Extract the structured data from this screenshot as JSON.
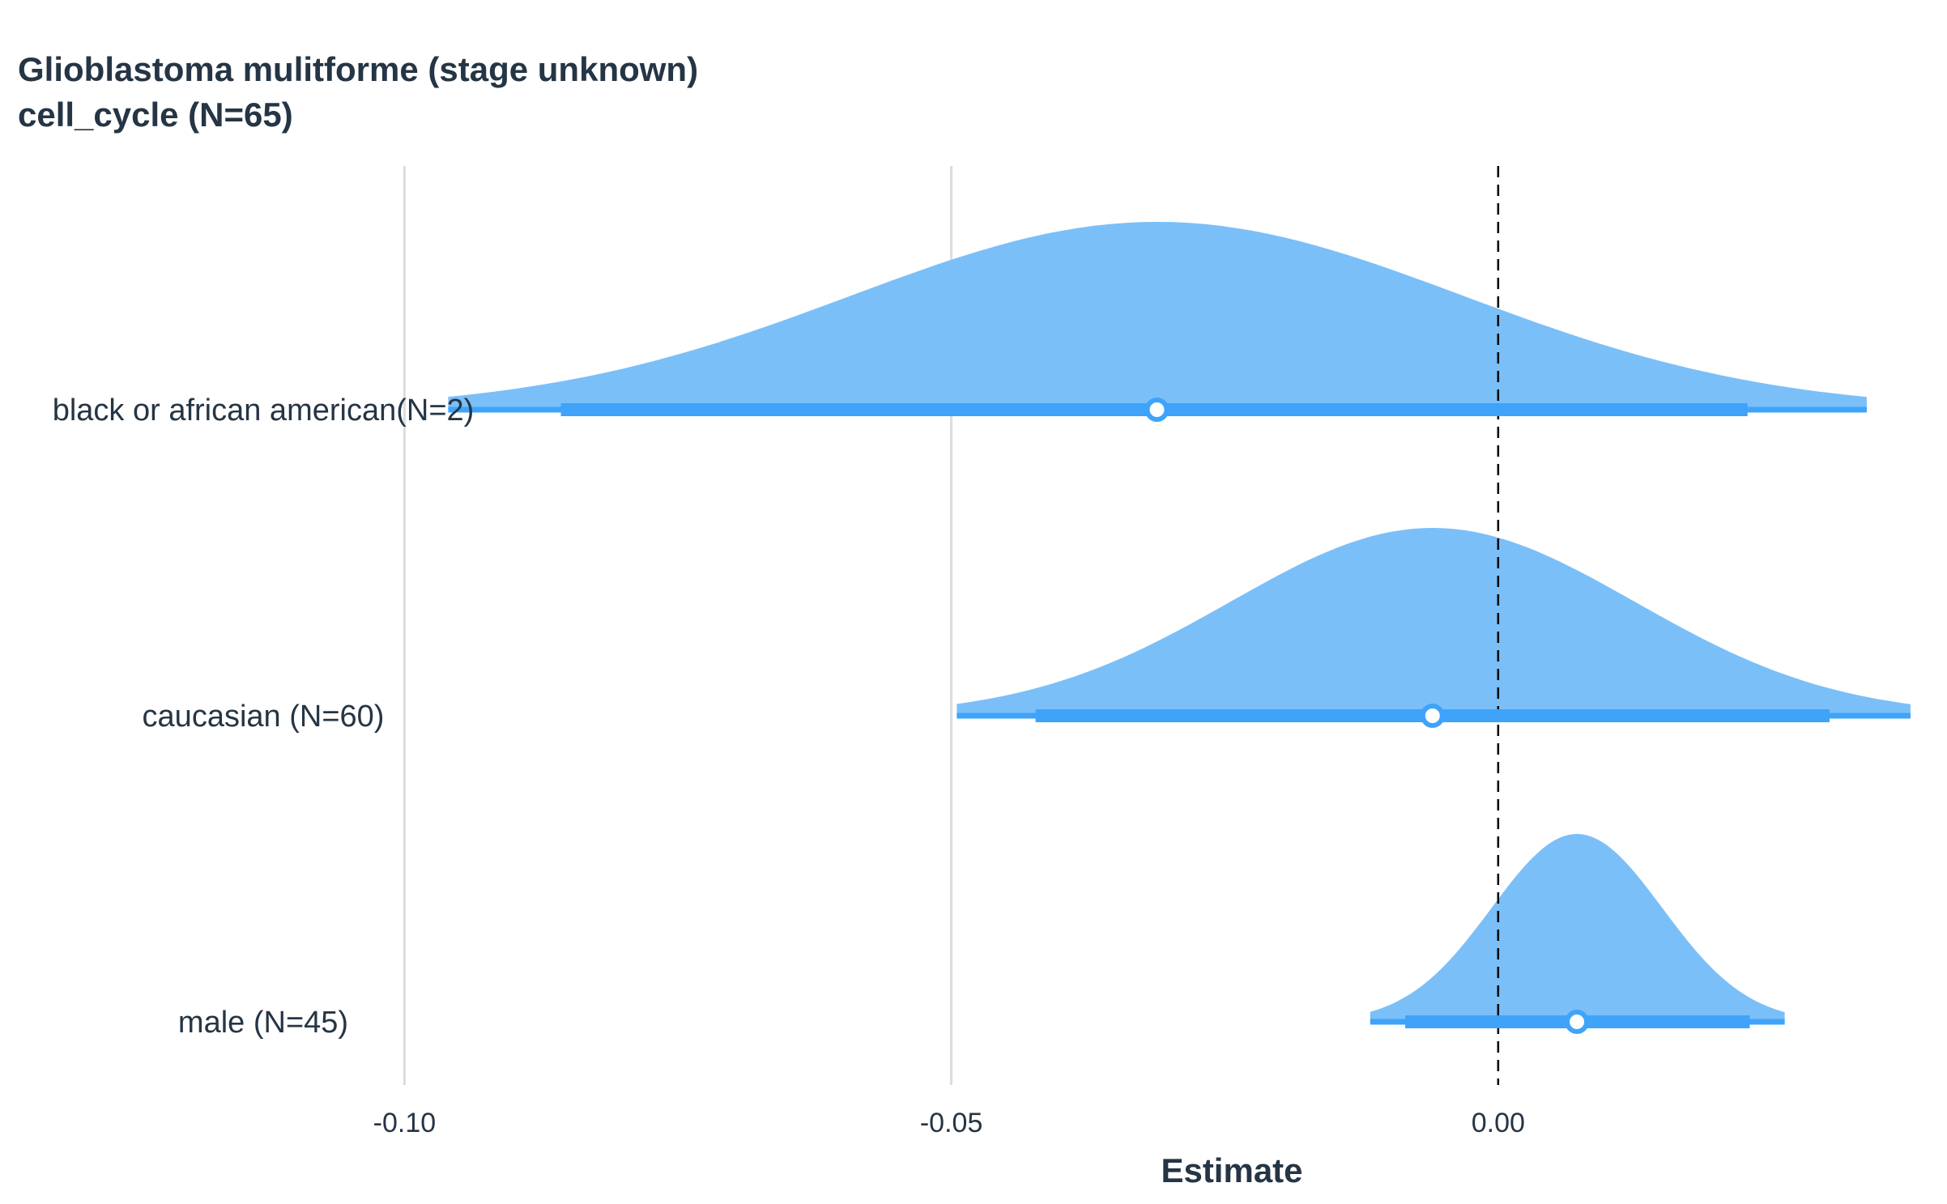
{
  "chart_data": {
    "type": "forest-density",
    "title": [
      "Glioblastoma mulitforme (stage unknown)",
      "cell_cycle (N=65)"
    ],
    "xlabel": "Estimate",
    "ylabel": "",
    "xlim": [
      -0.1355,
      0.04
    ],
    "xticks": [
      -0.1,
      -0.05,
      0.0
    ],
    "xtick_labels": [
      "-0.10",
      "-0.05",
      "0.00"
    ],
    "reference_line": 0.0,
    "grid": "vertical major",
    "colors": {
      "density_fill": "#7bbff8",
      "interval": "#3fa3fa",
      "point_fill": "#ffffff",
      "point_stroke": "#3fa3fa",
      "grid": "#dcdcdc",
      "reference": "#000000"
    },
    "rows": [
      {
        "label": "black or african american(N=2)",
        "estimate": -0.0312,
        "ci_low": -0.0857,
        "ci_high": 0.0228,
        "range_low": -0.096,
        "range_high": 0.0337,
        "sd": 0.028
      },
      {
        "label": "caucasian (N=60)",
        "estimate": -0.006,
        "ci_low": -0.0423,
        "ci_high": 0.0303,
        "range_low": -0.0495,
        "range_high": 0.0377,
        "sd": 0.0185
      },
      {
        "label": "male (N=45)",
        "estimate": 0.0072,
        "ci_low": -0.0085,
        "ci_high": 0.023,
        "range_low": -0.0117,
        "range_high": 0.0262,
        "sd": 0.0078
      }
    ]
  }
}
